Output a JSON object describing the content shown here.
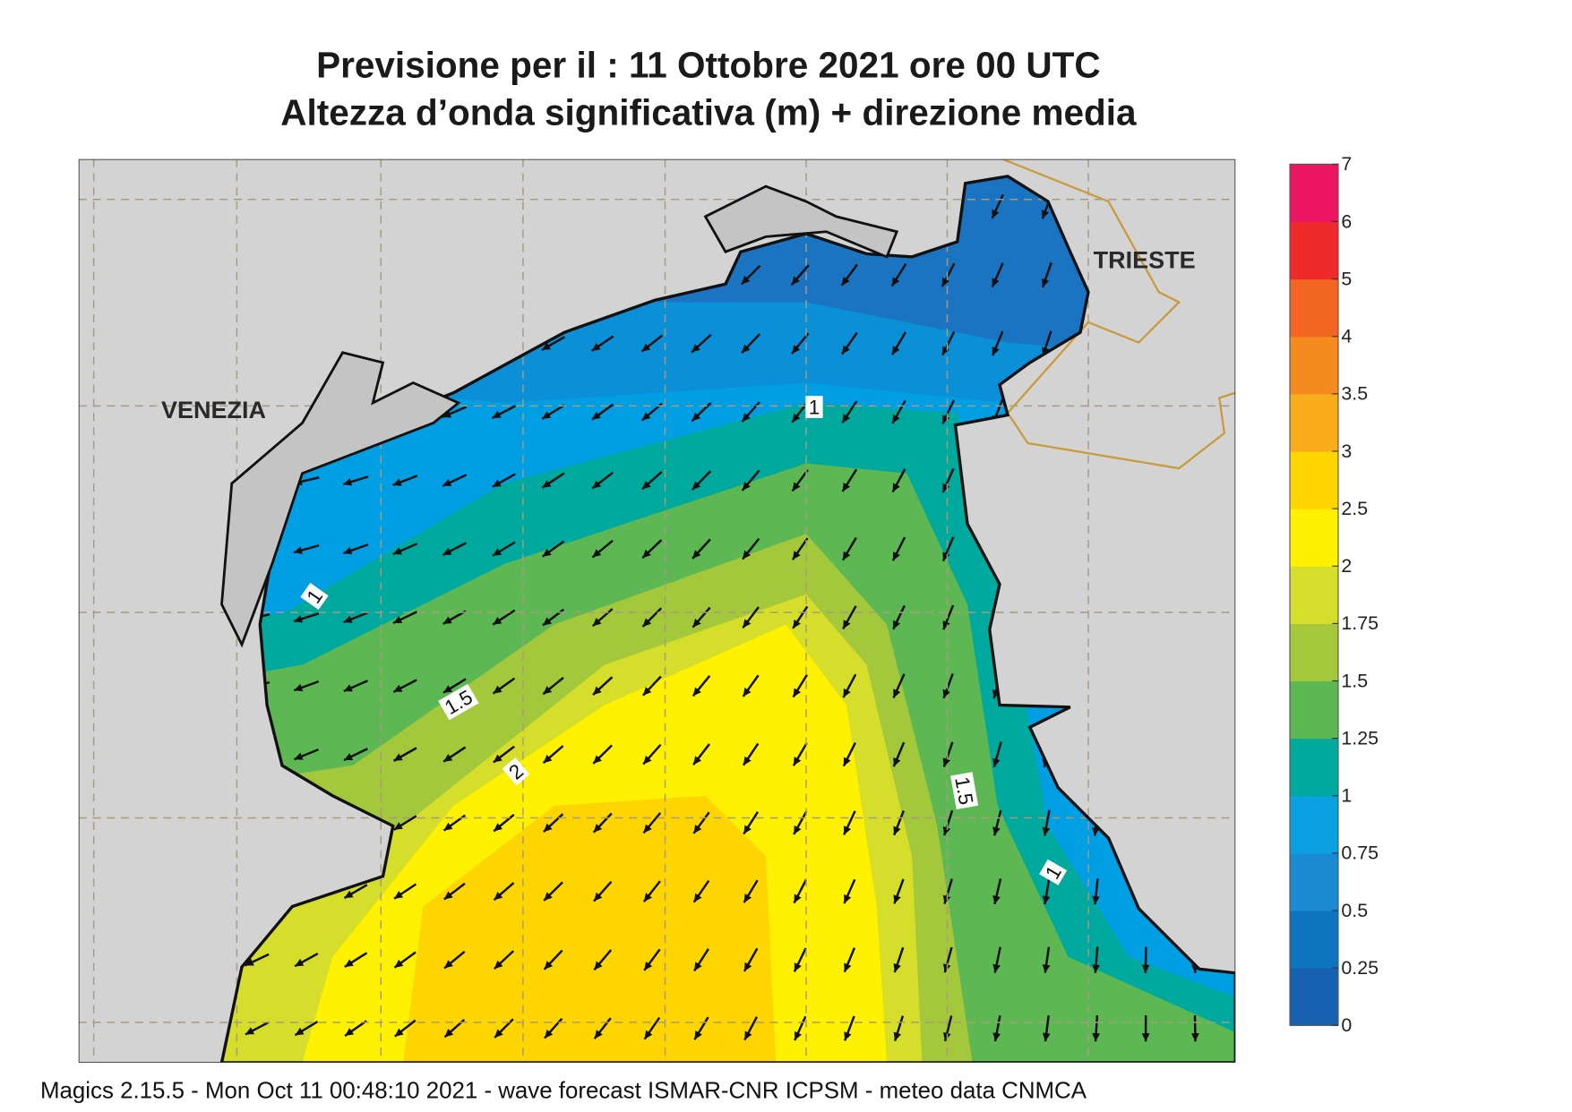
{
  "header": {
    "title_line1": "Previsione per il  :  11  Ottobre  2021   ore 00 UTC",
    "title_line2": "Altezza d’onda significativa (m) + direzione media"
  },
  "map": {
    "cities": [
      "VENEZIA",
      "TRIESTE"
    ],
    "contour_labels": [
      "1",
      "1",
      "1.5",
      "2",
      "1.5",
      "1"
    ]
  },
  "legend": {
    "levels": [
      "0",
      "0.25",
      "0.5",
      "0.75",
      "1",
      "1.25",
      "1.5",
      "1.75",
      "2",
      "2.5",
      "3",
      "3.5",
      "4",
      "5",
      "6",
      "7"
    ],
    "colors": [
      "#1761b0",
      "#0f74c0",
      "#1a8bd3",
      "#0aa0e2",
      "#00a99d",
      "#5db854",
      "#a4c83b",
      "#d5de2a",
      "#fff100",
      "#ffd500",
      "#f9ad1a",
      "#f58a1f",
      "#f26522",
      "#ee2a2a",
      "#ec1561"
    ]
  },
  "footer": "Magics 2.15.5 - Mon Oct 11 00:48:10 2021 - wave forecast  ISMAR-CNR  ICPSM - meteo data   CNMCA"
}
